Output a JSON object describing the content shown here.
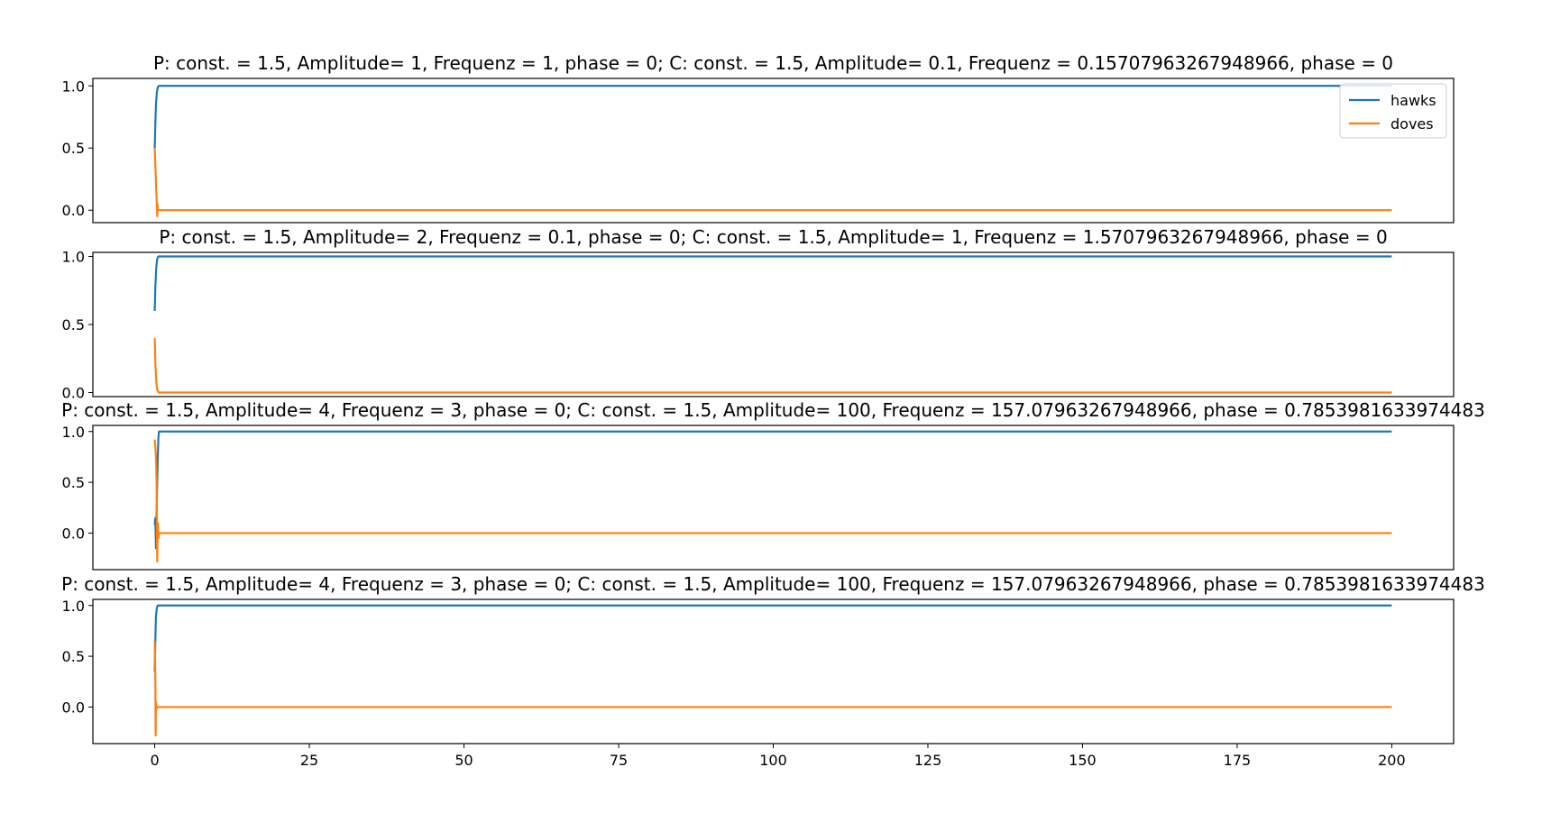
{
  "colors": {
    "hawks": "#1f77b4",
    "doves": "#ff7f0e",
    "axes": "#000000",
    "legend_border": "#cccccc"
  },
  "chart_data": [
    {
      "type": "line",
      "title": "P: const. = 1.5, Amplitude= 1, Frequenz = 1, phase = 0; C: const. = 1.5, Amplitude= 0.1, Frequenz = 0.15707963267948966, phase = 0",
      "xlim": [
        -10,
        210
      ],
      "ylim": [
        -0.1,
        1.06
      ],
      "yticks": [
        0.0,
        0.5,
        1.0
      ],
      "ytick_labels": [
        "0.0",
        "0.5",
        "1.0"
      ],
      "show_xticks": false,
      "legend": {
        "placement": "top-right",
        "entries": [
          "hawks",
          "doves"
        ]
      },
      "series": [
        {
          "name": "hawks",
          "x": [
            0,
            0.1,
            0.2,
            0.35,
            0.5,
            0.7,
            200
          ],
          "y": [
            0.5,
            0.7,
            0.85,
            0.95,
            0.99,
            1.0,
            1.0
          ]
        },
        {
          "name": "doves",
          "x": [
            0,
            0.15,
            0.25,
            0.3,
            0.4,
            0.45,
            0.5,
            0.6,
            200
          ],
          "y": [
            0.5,
            0.3,
            0.15,
            0.1,
            -0.05,
            0.05,
            0.0,
            0.0,
            0.0
          ]
        }
      ]
    },
    {
      "type": "line",
      "title": "P: const. = 1.5, Amplitude= 2, Frequenz = 0.1, phase = 0; C: const. = 1.5, Amplitude= 1, Frequenz = 1.5707963267948966, phase = 0",
      "xlim": [
        -10,
        210
      ],
      "ylim": [
        -0.03,
        1.03
      ],
      "yticks": [
        0.0,
        0.5,
        1.0
      ],
      "ytick_labels": [
        "0.0",
        "0.5",
        "1.0"
      ],
      "show_xticks": false,
      "series": [
        {
          "name": "hawks",
          "x": [
            0,
            0.1,
            0.25,
            0.4,
            0.6,
            0.9,
            200
          ],
          "y": [
            0.6,
            0.78,
            0.92,
            0.98,
            1.0,
            1.0,
            1.0
          ]
        },
        {
          "name": "doves",
          "x": [
            0,
            0.1,
            0.25,
            0.4,
            0.6,
            0.9,
            200
          ],
          "y": [
            0.4,
            0.22,
            0.08,
            0.02,
            0.0,
            0.0,
            0.0
          ]
        }
      ]
    },
    {
      "type": "line",
      "title": "P: const. = 1.5, Amplitude= 4, Frequenz = 3, phase = 0; C: const. = 1.5, Amplitude= 100, Frequenz = 157.07963267948966, phase = 0.7853981633974483",
      "xlim": [
        -10,
        210
      ],
      "ylim": [
        -0.36,
        1.06
      ],
      "yticks": [
        0.0,
        0.5,
        1.0
      ],
      "ytick_labels": [
        "0.0",
        "0.5",
        "1.0"
      ],
      "show_xticks": false,
      "series": [
        {
          "name": "hawks",
          "x": [
            0,
            0.1,
            0.2,
            0.3,
            0.4,
            0.5,
            0.6,
            0.7,
            0.9,
            200
          ],
          "y": [
            0.08,
            0.15,
            -0.15,
            0.2,
            0.5,
            0.75,
            0.95,
            1.0,
            1.0,
            1.0
          ]
        },
        {
          "name": "doves",
          "x": [
            0,
            0.1,
            0.2,
            0.3,
            0.4,
            0.5,
            0.6,
            0.7,
            0.9,
            200
          ],
          "y": [
            0.92,
            0.85,
            0.75,
            0.5,
            -0.28,
            0.1,
            -0.05,
            0.0,
            0.0,
            0.0
          ]
        }
      ]
    },
    {
      "type": "line",
      "title": "P: const. = 1.5, Amplitude= 4, Frequenz = 3, phase = 0; C: const. = 1.5, Amplitude= 100, Frequenz = 157.07963267948966, phase = 0.7853981633974483",
      "xlim": [
        -10,
        210
      ],
      "ylim": [
        -0.36,
        1.06
      ],
      "yticks": [
        0.0,
        0.5,
        1.0
      ],
      "ytick_labels": [
        "0.0",
        "0.5",
        "1.0"
      ],
      "show_xticks": true,
      "xticks": [
        0,
        25,
        50,
        75,
        100,
        125,
        150,
        175,
        200
      ],
      "xtick_labels": [
        "0",
        "25",
        "50",
        "75",
        "100",
        "125",
        "150",
        "175",
        "200"
      ],
      "series": [
        {
          "name": "hawks",
          "x": [
            0,
            0.1,
            0.2,
            0.3,
            0.4,
            0.5,
            0.7,
            200
          ],
          "y": [
            0.35,
            0.67,
            0.9,
            0.95,
            0.99,
            1.0,
            1.0,
            1.0
          ]
        },
        {
          "name": "doves",
          "x": [
            0,
            0.1,
            0.15,
            0.2,
            0.3,
            0.4,
            0.6,
            200
          ],
          "y": [
            0.65,
            0.3,
            -0.28,
            0.05,
            -0.02,
            0.0,
            0.0,
            0.0
          ]
        }
      ]
    }
  ]
}
